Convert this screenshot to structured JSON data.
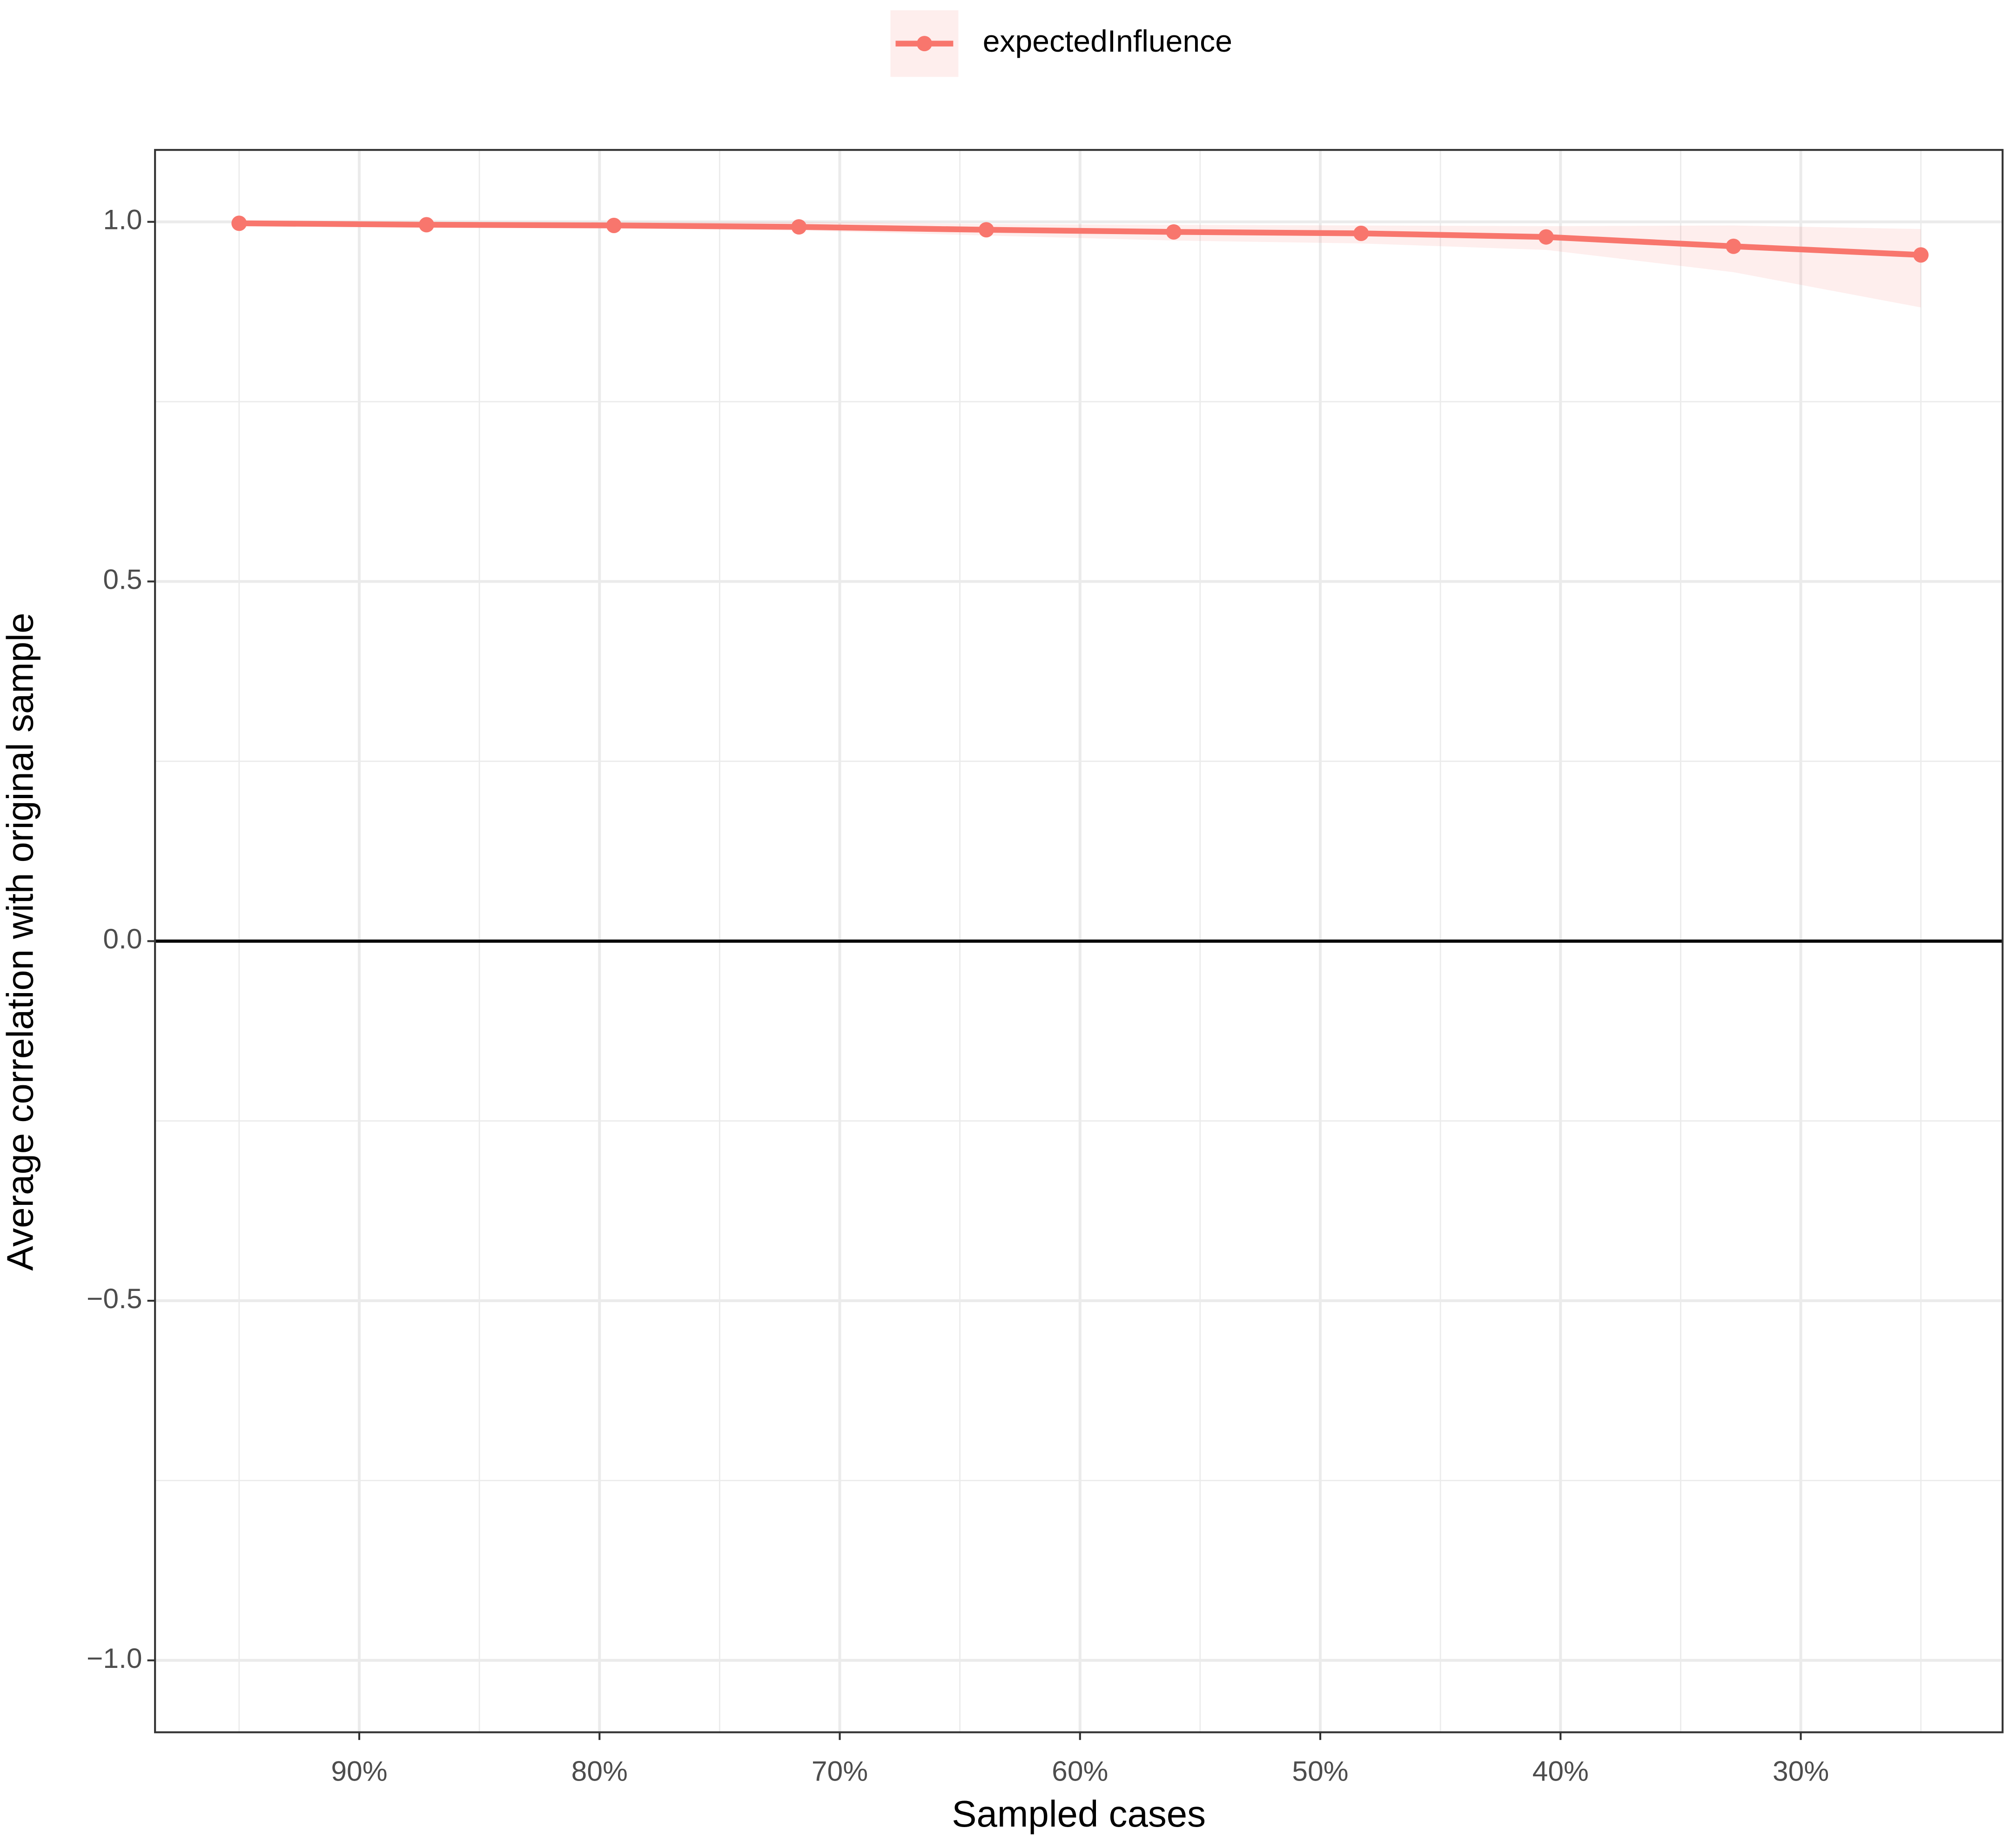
{
  "chart_data": {
    "type": "line",
    "x_label": "Sampled cases",
    "y_label": "Average correlation with original sample",
    "x": [
      95,
      87.2,
      79.4,
      71.7,
      63.9,
      56.1,
      48.3,
      40.6,
      32.8,
      25
    ],
    "series": [
      {
        "name": "expectedInfluence",
        "color": "#f8766d",
        "values": [
          0.998,
          0.996,
          0.995,
          0.993,
          0.989,
          0.986,
          0.984,
          0.979,
          0.966,
          0.954
        ],
        "lower": [
          0.997,
          0.994,
          0.991,
          0.988,
          0.981,
          0.974,
          0.97,
          0.961,
          0.93,
          0.881
        ],
        "upper": [
          1,
          1,
          1,
          1,
          0.997,
          0.996,
          0.995,
          0.994,
          0.995,
          0.99
        ]
      }
    ],
    "xlim": [
      98.5,
      21.6
    ],
    "xticks": [
      {
        "value": 90,
        "label": "90%"
      },
      {
        "value": 80,
        "label": "80%"
      },
      {
        "value": 70,
        "label": "70%"
      },
      {
        "value": 60,
        "label": "60%"
      },
      {
        "value": 50,
        "label": "50%"
      },
      {
        "value": 40,
        "label": "40%"
      },
      {
        "value": 30,
        "label": "30%"
      }
    ],
    "x_minor_ticks": [
      95,
      85,
      75,
      65,
      55,
      45,
      35,
      25
    ],
    "ylim": [
      -1.1,
      1.1
    ],
    "yticks": [
      {
        "value": -1,
        "label": "−1.0"
      },
      {
        "value": -0.5,
        "label": "−0.5"
      },
      {
        "value": 0,
        "label": "0.0"
      },
      {
        "value": 0.5,
        "label": "0.5"
      },
      {
        "value": 1,
        "label": "1.0"
      }
    ],
    "y_minor_ticks": [
      -0.75,
      -0.25,
      0.25,
      0.75
    ],
    "hline": 0,
    "grid": true,
    "legend": "top"
  }
}
